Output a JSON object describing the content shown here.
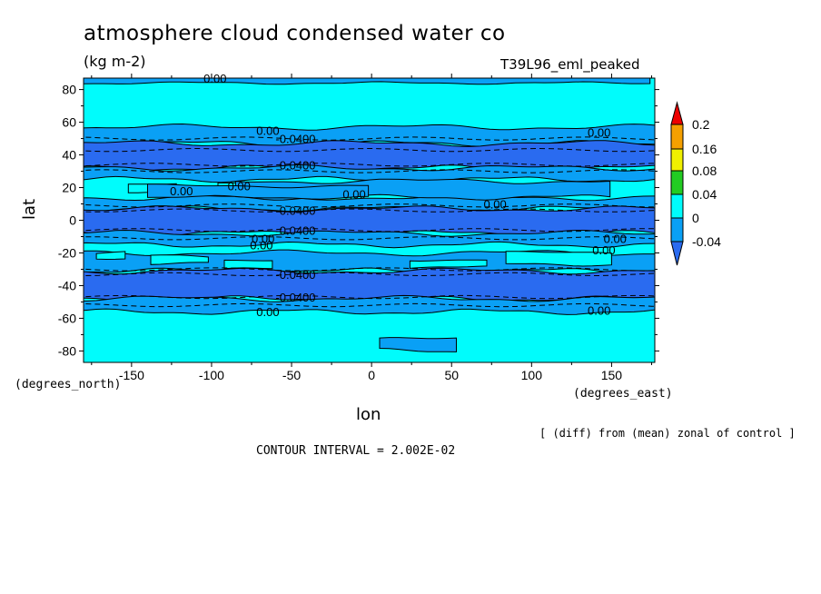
{
  "title": "atmosphere cloud condensed water co",
  "units": "(kg m-2)",
  "run_name": "T39L96_eml_peaked",
  "contour_interval": "CONTOUR INTERVAL = 2.002E-02",
  "note": "[ (diff) from (mean) zonal of control ]",
  "colors": {
    "deep_blue": "#2a6bf0",
    "mid_blue": "#0aa0f5",
    "cyan": "#00fcfc",
    "green": "#22cc22",
    "yellow": "#f0f000",
    "orange": "#f5a000",
    "red": "#ee0000"
  },
  "chart_data": {
    "type": "contour",
    "xlabel": "lon",
    "ylabel": "lat",
    "x_units": "(degrees_east)",
    "y_units": "(degrees_north)",
    "xlim": [
      -180,
      177
    ],
    "ylim": [
      -87,
      87
    ],
    "x_ticks": [
      "-150",
      "-100",
      "-50",
      "0",
      "50",
      "100",
      "150"
    ],
    "y_ticks": [
      "80",
      "60",
      "40",
      "20",
      "0",
      "-20",
      "-40",
      "-60",
      "-80"
    ],
    "colorbar": {
      "labels": [
        "0.2",
        "0.16",
        "0.08",
        "0.04",
        "0",
        "-0.04"
      ]
    },
    "contour_labels": [
      "0.00",
      "-0.0400"
    ],
    "bands": [
      {
        "level": "mid_blue",
        "lat": [
          47,
          57
        ]
      },
      {
        "level": "deep_blue",
        "lat": [
          32,
          47
        ]
      },
      {
        "level": "mid_blue",
        "lat": [
          25,
          32
        ]
      },
      {
        "level": "mid_blue",
        "lat": [
          7,
          14
        ]
      },
      {
        "level": "deep_blue",
        "lat": [
          -8,
          7
        ]
      },
      {
        "level": "mid_blue",
        "lat": [
          -15,
          -8
        ]
      },
      {
        "level": "mid_blue",
        "lat": [
          -31,
          -20
        ]
      },
      {
        "level": "deep_blue",
        "lat": [
          -48,
          -31
        ]
      },
      {
        "level": "mid_blue",
        "lat": [
          -56,
          -48
        ]
      }
    ]
  }
}
